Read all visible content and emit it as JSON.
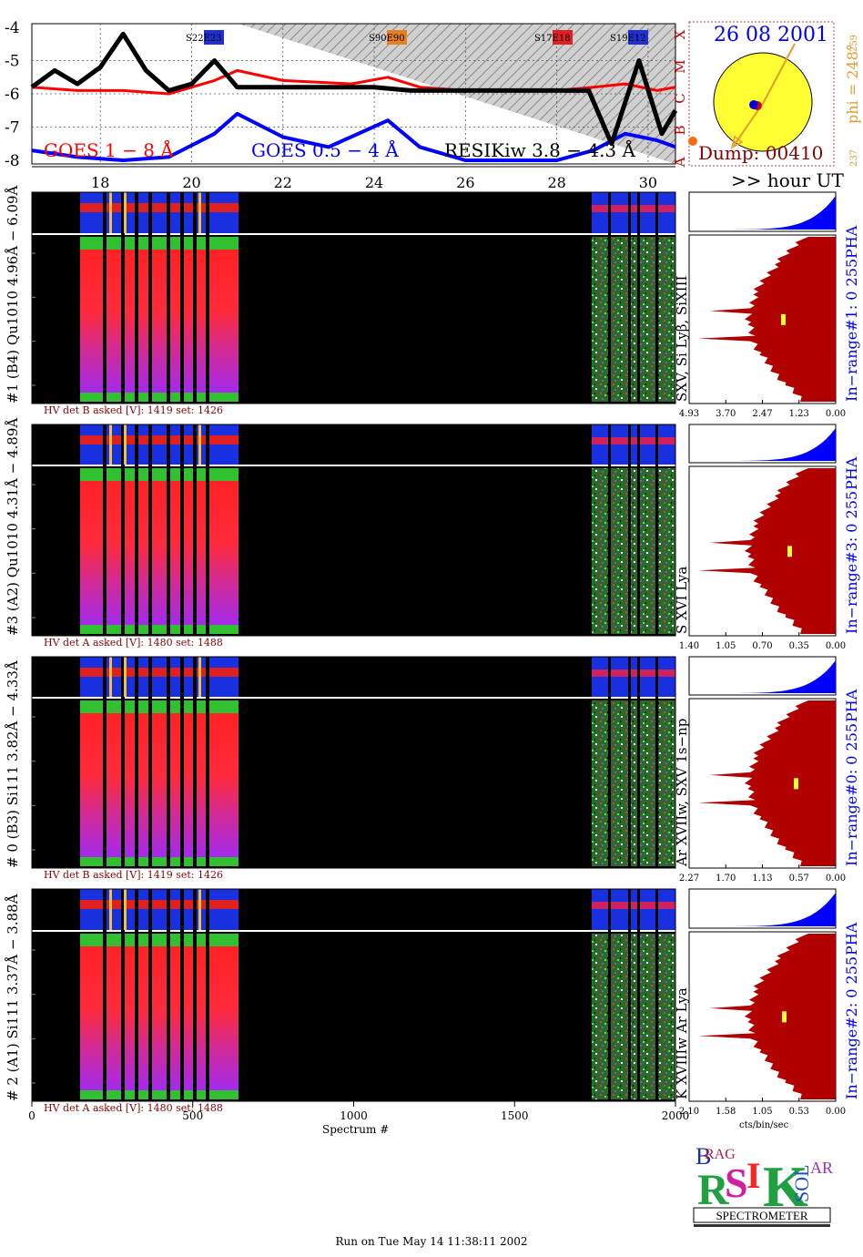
{
  "page": {
    "footer": "Run on Tue May 14 11:38:11 2002",
    "x_axis_title": "Spectrum #",
    "hour_label": ">> hour UT"
  },
  "colors": {
    "goes_long": "#ff0000",
    "goes_short": "#0000ff",
    "resik": "#000000",
    "spectrum_fill": "#b00000",
    "pha": "#0000ff",
    "sun": "#ffff33",
    "label_orange": "#e89a2a",
    "hv_text": "#8b0000"
  },
  "chart_data": [
    {
      "type": "line",
      "title": "Light curves",
      "yticks": [
        "-4",
        "-5",
        "-6",
        "-7",
        "-8"
      ],
      "ylim": [
        -8,
        -4
      ],
      "xticks": [
        "18",
        "20",
        "22",
        "24",
        "26",
        "28",
        "30"
      ],
      "xlim": [
        16.5,
        30.6
      ],
      "class_letters": [
        "X",
        "M",
        "C",
        "B",
        "A"
      ],
      "legend": [
        {
          "name": "GOES 1 − 8 Å",
          "color": "#ff0000"
        },
        {
          "name": "GOES 0.5 − 4 Å",
          "color": "#0000ff"
        },
        {
          "name": "RESIKiw 3.8 − 4.3 Å",
          "color": "#000000"
        }
      ],
      "regions": [
        "S22E23",
        "S90E90",
        "S17E18",
        "S19E12"
      ],
      "series": [
        {
          "name": "GOES 1 − 8 Å",
          "x": [
            16.5,
            17.5,
            18.5,
            19.5,
            20.5,
            21.0,
            22.0,
            23.5,
            24.3,
            25.0,
            26.0,
            27.0,
            28.0,
            28.8,
            29.5,
            30.2,
            30.6
          ],
          "y": [
            -5.8,
            -5.9,
            -5.9,
            -6.0,
            -5.6,
            -5.3,
            -5.6,
            -5.7,
            -5.5,
            -5.8,
            -5.9,
            -5.9,
            -5.9,
            -5.8,
            -5.7,
            -5.9,
            -5.8
          ]
        },
        {
          "name": "GOES 0.5 − 4 Å",
          "x": [
            16.5,
            17.5,
            18.5,
            19.5,
            20.5,
            21.0,
            22.0,
            23.0,
            24.3,
            25.0,
            26.0,
            27.0,
            28.0,
            28.8,
            29.5,
            30.2,
            30.6
          ],
          "y": [
            -7.7,
            -7.9,
            -8.0,
            -7.9,
            -7.2,
            -6.6,
            -7.3,
            -7.6,
            -6.8,
            -7.6,
            -8.0,
            -8.1,
            -8.0,
            -7.7,
            -7.2,
            -7.4,
            -7.6
          ]
        },
        {
          "name": "RESIKiw 3.8 − 4.3 Å",
          "x": [
            16.5,
            17.0,
            17.5,
            18.0,
            18.5,
            19.0,
            19.5,
            20.0,
            20.5,
            21.0,
            24.0,
            24.8,
            28.7,
            29.2,
            29.8,
            30.3,
            30.6
          ],
          "y": [
            -5.8,
            -5.3,
            -5.7,
            -5.2,
            -4.2,
            -5.3,
            -5.9,
            -5.7,
            -5.0,
            -5.8,
            -5.8,
            -5.9,
            -5.9,
            -7.5,
            -5.0,
            -7.2,
            -6.5
          ]
        }
      ]
    },
    {
      "type": "heatmap",
      "detector": "#1 (B4) Qu1010  4.96Å − 6.09Å",
      "pha_label": "PHA",
      "range_label": "In−range#1:  0 255",
      "line_label": "SXV, Si Lyβ, SiXIII",
      "hv": "HV det B asked [V]:  1419 set:  1426",
      "spectrum_ticks": [
        "4.93",
        "3.70",
        "2.47",
        "1.23",
        "0.00"
      ]
    },
    {
      "type": "heatmap",
      "detector": "#3 (A2) Qu1010  4.31Å − 4.89Å",
      "pha_label": "PHA",
      "range_label": "In−range#3:  0 255",
      "line_label": "S XVI Lya",
      "hv": "HV det A asked [V]:  1480 set:  1488",
      "spectrum_ticks": [
        "1.40",
        "1.05",
        "0.70",
        "0.35",
        "0.00"
      ]
    },
    {
      "type": "heatmap",
      "detector": "# 0 (B3) Si111  3.82Å − 4.33Å",
      "pha_label": "PHA",
      "range_label": "In−range#0:  0 255",
      "line_label": "Ar XVIIw, SXV 1s−np",
      "hv": "HV det B asked [V]:  1419 set:  1426",
      "spectrum_ticks": [
        "2.27",
        "1.70",
        "1.13",
        "0.57",
        "0.00"
      ]
    },
    {
      "type": "heatmap",
      "detector": "# 2 (A1) Si111  3.37Å − 3.88Å",
      "pha_label": "PHA",
      "range_label": "In−range#2:  0 255",
      "line_label": "K XVIIIw  Ar Lya",
      "hv": "HV det A asked [V]:  1480 set:  1488",
      "spectrum_ticks": [
        "2.10",
        "1.58",
        "1.05",
        "0.53",
        "0.00"
      ],
      "spectrum_unit": "cts/bin/sec",
      "x_ticks": [
        "0",
        "500",
        "1000",
        "1500",
        "2000"
      ]
    }
  ],
  "sun": {
    "date": "26 08 2001",
    "dump": "Dump: 00410",
    "phi": "phi = 248°",
    "scale_top": "259",
    "scale_bottom": "237"
  },
  "logo": {
    "letters": "BRAGG RESIK SOLAR",
    "title": "SPECTROMETER"
  }
}
